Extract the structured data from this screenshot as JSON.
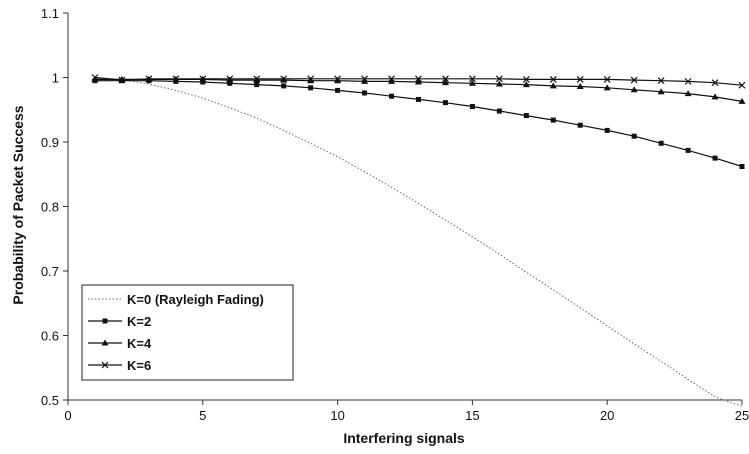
{
  "chart_data": {
    "type": "line",
    "title": "",
    "xlabel": "Interfering signals",
    "ylabel": "Probability of Packet Success",
    "xlim": [
      0,
      25
    ],
    "ylim": [
      0.5,
      1.1
    ],
    "xticks": [
      "0",
      "5",
      "10",
      "15",
      "20",
      "25"
    ],
    "yticks": [
      "0.5",
      "0.6",
      "0.7",
      "0.8",
      "0.9",
      "1",
      "1.1"
    ],
    "grid": false,
    "legend_position": "bottom-left",
    "x": [
      1,
      2,
      3,
      4,
      5,
      6,
      7,
      8,
      9,
      10,
      11,
      12,
      13,
      14,
      15,
      16,
      17,
      18,
      19,
      20,
      21,
      22,
      23,
      24,
      25
    ],
    "series": [
      {
        "name": "K=0 (Rayleigh Fading)",
        "marker": "none",
        "dash": "dotted",
        "values": [
          1.0,
          0.997,
          0.99,
          0.98,
          0.968,
          0.953,
          0.937,
          0.918,
          0.898,
          0.877,
          0.854,
          0.83,
          0.805,
          0.779,
          0.753,
          0.726,
          0.698,
          0.671,
          0.643,
          0.615,
          0.587,
          0.56,
          0.532,
          0.505,
          0.49
        ]
      },
      {
        "name": "K=2",
        "marker": "square",
        "dash": "solid",
        "values": [
          0.995,
          0.995,
          0.995,
          0.994,
          0.993,
          0.991,
          0.989,
          0.987,
          0.984,
          0.98,
          0.976,
          0.971,
          0.966,
          0.961,
          0.955,
          0.948,
          0.941,
          0.934,
          0.926,
          0.918,
          0.909,
          0.898,
          0.887,
          0.875,
          0.862
        ]
      },
      {
        "name": "K=4",
        "marker": "triangle",
        "dash": "solid",
        "values": [
          0.997,
          0.997,
          0.997,
          0.997,
          0.997,
          0.996,
          0.996,
          0.996,
          0.995,
          0.995,
          0.994,
          0.994,
          0.993,
          0.992,
          0.991,
          0.99,
          0.989,
          0.987,
          0.986,
          0.984,
          0.981,
          0.978,
          0.975,
          0.97,
          0.963
        ]
      },
      {
        "name": "K=6",
        "marker": "x",
        "dash": "solid",
        "values": [
          1.0,
          0.996,
          0.998,
          0.998,
          0.998,
          0.998,
          0.998,
          0.998,
          0.998,
          0.998,
          0.998,
          0.998,
          0.998,
          0.998,
          0.998,
          0.998,
          0.997,
          0.997,
          0.997,
          0.997,
          0.996,
          0.995,
          0.994,
          0.992,
          0.988
        ]
      }
    ]
  }
}
